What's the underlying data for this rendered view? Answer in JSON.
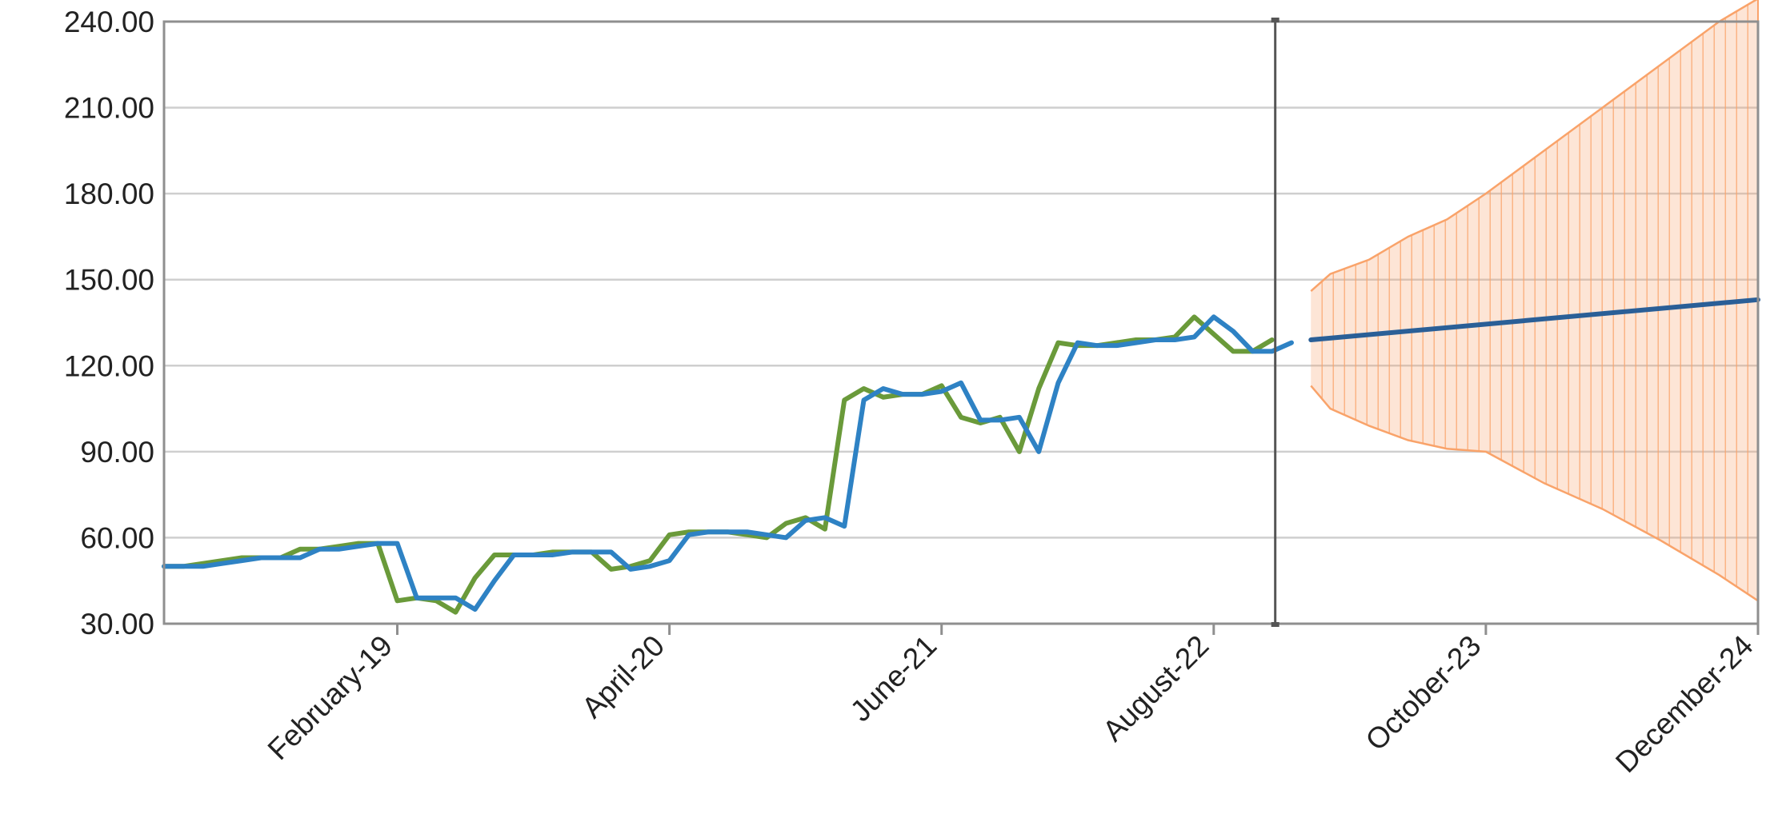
{
  "chart_data": {
    "type": "line",
    "title": "",
    "xlabel": "",
    "ylabel": "",
    "ylim": [
      30,
      240
    ],
    "yticks": [
      "30.00",
      "60.00",
      "90.00",
      "120.00",
      "150.00",
      "180.00",
      "210.00",
      "240.00"
    ],
    "xlim": [
      "2018-02",
      "2024-12"
    ],
    "xticks": [
      {
        "date": "2019-02",
        "label": "February-19"
      },
      {
        "date": "2020-04",
        "label": "April-20"
      },
      {
        "date": "2021-06",
        "label": "June-21"
      },
      {
        "date": "2022-08",
        "label": "August-22"
      },
      {
        "date": "2023-10",
        "label": "October-23"
      },
      {
        "date": "2024-12",
        "label": "December-24"
      }
    ],
    "forecast_start": "2022-11",
    "grid": true,
    "legend": "none",
    "series": [
      {
        "color": "#6a9a3a",
        "points": [
          [
            "2018-02",
            50
          ],
          [
            "2018-03",
            50
          ],
          [
            "2018-04",
            51
          ],
          [
            "2018-05",
            52
          ],
          [
            "2018-06",
            53
          ],
          [
            "2018-07",
            53
          ],
          [
            "2018-08",
            53
          ],
          [
            "2018-09",
            56
          ],
          [
            "2018-10",
            56
          ],
          [
            "2018-11",
            57
          ],
          [
            "2018-12",
            58
          ],
          [
            "2019-01",
            58
          ],
          [
            "2019-02",
            38
          ],
          [
            "2019-03",
            39
          ],
          [
            "2019-04",
            38
          ],
          [
            "2019-05",
            34
          ],
          [
            "2019-06",
            46
          ],
          [
            "2019-07",
            54
          ],
          [
            "2019-08",
            54
          ],
          [
            "2019-09",
            54
          ],
          [
            "2019-10",
            55
          ],
          [
            "2019-11",
            55
          ],
          [
            "2019-12",
            55
          ],
          [
            "2020-01",
            49
          ],
          [
            "2020-02",
            50
          ],
          [
            "2020-03",
            52
          ],
          [
            "2020-04",
            61
          ],
          [
            "2020-05",
            62
          ],
          [
            "2020-06",
            62
          ],
          [
            "2020-07",
            62
          ],
          [
            "2020-08",
            61
          ],
          [
            "2020-09",
            60
          ],
          [
            "2020-10",
            65
          ],
          [
            "2020-11",
            67
          ],
          [
            "2020-12",
            63
          ],
          [
            "2021-01",
            108
          ],
          [
            "2021-02",
            112
          ],
          [
            "2021-03",
            109
          ],
          [
            "2021-04",
            110
          ],
          [
            "2021-05",
            110
          ],
          [
            "2021-06",
            113
          ],
          [
            "2021-07",
            102
          ],
          [
            "2021-08",
            100
          ],
          [
            "2021-09",
            102
          ],
          [
            "2021-10",
            90
          ],
          [
            "2021-11",
            112
          ],
          [
            "2021-12",
            128
          ],
          [
            "2022-01",
            127
          ],
          [
            "2022-02",
            127
          ],
          [
            "2022-03",
            128
          ],
          [
            "2022-04",
            129
          ],
          [
            "2022-05",
            129
          ],
          [
            "2022-06",
            130
          ],
          [
            "2022-07",
            137
          ],
          [
            "2022-08",
            131
          ],
          [
            "2022-09",
            125
          ],
          [
            "2022-10",
            125
          ],
          [
            "2022-11",
            129
          ]
        ]
      },
      {
        "color": "#2e82c4",
        "points": [
          [
            "2018-02",
            50
          ],
          [
            "2018-03",
            50
          ],
          [
            "2018-04",
            50
          ],
          [
            "2018-05",
            51
          ],
          [
            "2018-06",
            52
          ],
          [
            "2018-07",
            53
          ],
          [
            "2018-08",
            53
          ],
          [
            "2018-09",
            53
          ],
          [
            "2018-10",
            56
          ],
          [
            "2018-11",
            56
          ],
          [
            "2018-12",
            57
          ],
          [
            "2019-01",
            58
          ],
          [
            "2019-02",
            58
          ],
          [
            "2019-03",
            39
          ],
          [
            "2019-04",
            39
          ],
          [
            "2019-05",
            39
          ],
          [
            "2019-06",
            35
          ],
          [
            "2019-07",
            45
          ],
          [
            "2019-08",
            54
          ],
          [
            "2019-09",
            54
          ],
          [
            "2019-10",
            54
          ],
          [
            "2019-11",
            55
          ],
          [
            "2019-12",
            55
          ],
          [
            "2020-01",
            55
          ],
          [
            "2020-02",
            49
          ],
          [
            "2020-03",
            50
          ],
          [
            "2020-04",
            52
          ],
          [
            "2020-05",
            61
          ],
          [
            "2020-06",
            62
          ],
          [
            "2020-07",
            62
          ],
          [
            "2020-08",
            62
          ],
          [
            "2020-09",
            61
          ],
          [
            "2020-10",
            60
          ],
          [
            "2020-11",
            66
          ],
          [
            "2020-12",
            67
          ],
          [
            "2021-01",
            64
          ],
          [
            "2021-02",
            108
          ],
          [
            "2021-03",
            112
          ],
          [
            "2021-04",
            110
          ],
          [
            "2021-05",
            110
          ],
          [
            "2021-06",
            111
          ],
          [
            "2021-07",
            114
          ],
          [
            "2021-08",
            101
          ],
          [
            "2021-09",
            101
          ],
          [
            "2021-10",
            102
          ],
          [
            "2021-11",
            90
          ],
          [
            "2021-12",
            114
          ],
          [
            "2022-01",
            128
          ],
          [
            "2022-02",
            127
          ],
          [
            "2022-03",
            127
          ],
          [
            "2022-04",
            128
          ],
          [
            "2022-05",
            129
          ],
          [
            "2022-06",
            129
          ],
          [
            "2022-07",
            130
          ],
          [
            "2022-08",
            137
          ],
          [
            "2022-09",
            132
          ],
          [
            "2022-10",
            125
          ],
          [
            "2022-11",
            125
          ],
          [
            "2022-12",
            128
          ]
        ]
      }
    ],
    "forecast": {
      "line_color": "#2a5f97",
      "band_color": "#f9a36a",
      "mean": [
        [
          "2023-01",
          129
        ],
        [
          "2024-12",
          143
        ]
      ],
      "upper": [
        [
          "2023-01",
          146
        ],
        [
          "2023-02",
          152
        ],
        [
          "2023-04",
          157
        ],
        [
          "2023-06",
          165
        ],
        [
          "2023-08",
          171
        ],
        [
          "2023-10",
          180
        ],
        [
          "2024-01",
          195
        ],
        [
          "2024-04",
          210
        ],
        [
          "2024-07",
          225
        ],
        [
          "2024-10",
          240
        ],
        [
          "2024-12",
          248
        ]
      ],
      "lower": [
        [
          "2023-01",
          113
        ],
        [
          "2023-02",
          105
        ],
        [
          "2023-04",
          99
        ],
        [
          "2023-06",
          94
        ],
        [
          "2023-08",
          91
        ],
        [
          "2023-10",
          90
        ],
        [
          "2024-01",
          79
        ],
        [
          "2024-04",
          70
        ],
        [
          "2024-07",
          59
        ],
        [
          "2024-10",
          47
        ],
        [
          "2024-12",
          38
        ]
      ]
    }
  }
}
